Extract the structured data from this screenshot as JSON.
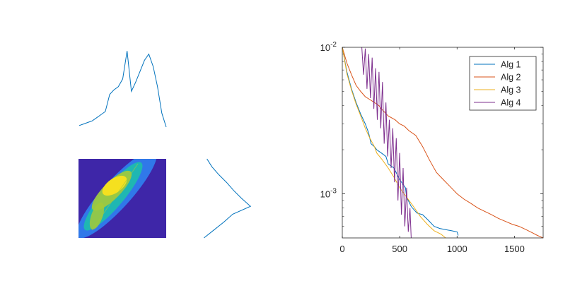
{
  "chart_data": [
    {
      "type": "line",
      "title": "",
      "xlabel": "",
      "ylabel": "",
      "x": [
        0,
        5,
        10,
        15,
        20,
        25,
        30,
        35,
        40,
        45,
        50,
        55,
        60,
        65,
        70,
        75,
        80,
        85,
        90,
        95,
        100
      ],
      "series": [
        {
          "values": [
            0.02,
            0.04,
            0.06,
            0.08,
            0.12,
            0.16,
            0.2,
            0.42,
            0.48,
            0.52,
            0.62,
            0.98,
            0.46,
            0.58,
            0.72,
            0.86,
            0.94,
            0.78,
            0.52,
            0.18,
            0.0
          ]
        }
      ],
      "color": "#0072bd"
    },
    {
      "type": "heatmap",
      "title": "",
      "colormap": [
        "#3e26a8",
        "#2e87f5",
        "#1cc2a8",
        "#a5ca38",
        "#f5e01f"
      ],
      "background": "#3e26a8"
    },
    {
      "type": "line",
      "title": "",
      "xlabel": "",
      "ylabel": "",
      "orientation": "vertical",
      "y": [
        0,
        10,
        20,
        30,
        40,
        50,
        60,
        70,
        80,
        90,
        100
      ],
      "series": [
        {
          "values": [
            0.08,
            0.18,
            0.32,
            0.48,
            0.62,
            0.78,
            0.96,
            0.6,
            0.42,
            0.22,
            0.02
          ]
        }
      ],
      "color": "#0072bd"
    },
    {
      "type": "line",
      "title": "",
      "xlabel": "",
      "ylabel": "",
      "xlim": [
        0,
        1750
      ],
      "ylim": [
        0.0005,
        0.01
      ],
      "yscale": "log",
      "xticks": [
        "0",
        "500",
        "1000",
        "1500"
      ],
      "yticks": [
        {
          "base": "10",
          "exp": "-2"
        },
        {
          "base": "10",
          "exp": "-3"
        }
      ],
      "grid": false,
      "legend_position": "top-right",
      "series": [
        {
          "name": "Alg 1",
          "color": "#0072bd",
          "x": [
            0,
            40,
            80,
            120,
            160,
            200,
            230,
            250,
            280,
            300,
            340,
            380,
            400,
            450,
            500,
            550,
            560,
            600,
            650,
            700,
            750,
            800,
            850,
            900,
            950,
            1000,
            1010
          ],
          "y": [
            0.01,
            0.0068,
            0.0052,
            0.0042,
            0.0035,
            0.003,
            0.0026,
            0.0022,
            0.0021,
            0.002,
            0.0019,
            0.0018,
            0.0016,
            0.0015,
            0.00125,
            0.0011,
            0.00095,
            0.00082,
            0.00074,
            0.00072,
            0.00066,
            0.0006,
            0.00058,
            0.00057,
            0.00056,
            0.00055,
            0.00052
          ]
        },
        {
          "name": "Alg 2",
          "color": "#d95319",
          "x": [
            0,
            40,
            80,
            120,
            160,
            200,
            240,
            280,
            320,
            340,
            400,
            460,
            500,
            540,
            580,
            640,
            700,
            760,
            820,
            880,
            940,
            1000,
            1060,
            1120,
            1180,
            1240,
            1300,
            1360,
            1420,
            1480,
            1540,
            1600,
            1660,
            1700,
            1750
          ],
          "y": [
            0.01,
            0.0078,
            0.0065,
            0.0055,
            0.005,
            0.0046,
            0.0044,
            0.0042,
            0.004,
            0.0038,
            0.0034,
            0.0032,
            0.003,
            0.0029,
            0.0027,
            0.0025,
            0.0021,
            0.0017,
            0.0014,
            0.00125,
            0.00112,
            0.001,
            0.00092,
            0.00086,
            0.0008,
            0.00076,
            0.00072,
            0.00068,
            0.00065,
            0.00062,
            0.0006,
            0.00057,
            0.00054,
            0.00052,
            0.0005
          ]
        },
        {
          "name": "Alg 3",
          "color": "#edb120",
          "x": [
            0,
            40,
            80,
            120,
            160,
            200,
            240,
            280,
            300,
            350,
            400,
            450,
            500,
            560,
            620,
            680,
            740,
            800,
            860,
            900
          ],
          "y": [
            0.01,
            0.0066,
            0.0051,
            0.0041,
            0.0034,
            0.0028,
            0.0024,
            0.0021,
            0.0019,
            0.0017,
            0.0015,
            0.0013,
            0.0011,
            0.00095,
            0.00082,
            0.0007,
            0.00062,
            0.00056,
            0.00053,
            0.0005
          ]
        },
        {
          "name": "Alg 4",
          "color": "#7e2f8e",
          "x": [
            170,
            185,
            200,
            215,
            230,
            245,
            260,
            275,
            290,
            305,
            320,
            335,
            350,
            365,
            380,
            395,
            410,
            425,
            440,
            455,
            470,
            485,
            500,
            515,
            530,
            545,
            560,
            575,
            590,
            600
          ],
          "y": [
            0.01,
            0.0065,
            0.0098,
            0.0052,
            0.009,
            0.0045,
            0.0085,
            0.0038,
            0.0072,
            0.0032,
            0.0068,
            0.0028,
            0.0058,
            0.0022,
            0.0042,
            0.0018,
            0.0032,
            0.0015,
            0.0028,
            0.0012,
            0.0024,
            0.0009,
            0.0019,
            0.00072,
            0.0015,
            0.0006,
            0.0011,
            0.00055,
            0.0008,
            0.0005
          ]
        }
      ]
    }
  ]
}
